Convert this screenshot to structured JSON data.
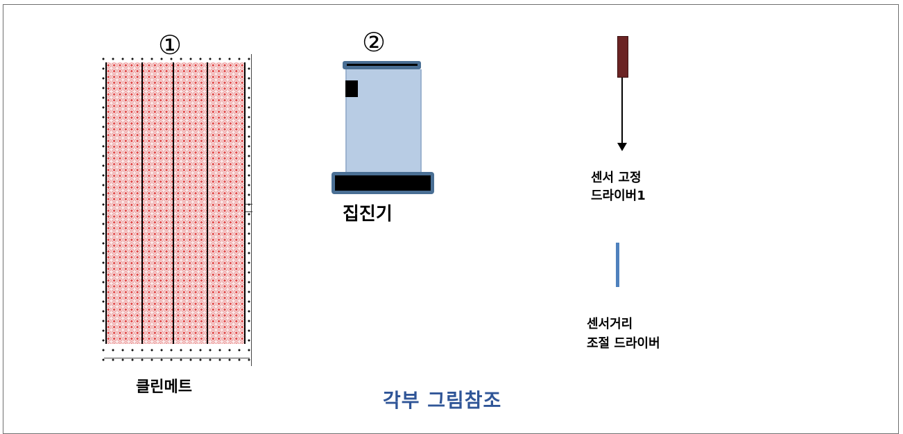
{
  "items": {
    "mat": {
      "number": "①",
      "label": "클린메트"
    },
    "dust_collector": {
      "number": "②",
      "label": "집진기"
    },
    "sensor_fix_driver": {
      "label_line1": "센서 고정",
      "label_line2": "드라이버1"
    },
    "sensor_distance_driver": {
      "label_line1": "센서거리",
      "label_line2": "조절 드라이버"
    }
  },
  "caption": "각부 그림참조",
  "colors": {
    "caption": "#2f5597",
    "mat_dot": "#e04a4a",
    "collector_body": "#b8cce4",
    "collector_frame": "#4a6f94",
    "driver1_handle": "#6b2424",
    "driver2": "#4f81bd"
  }
}
